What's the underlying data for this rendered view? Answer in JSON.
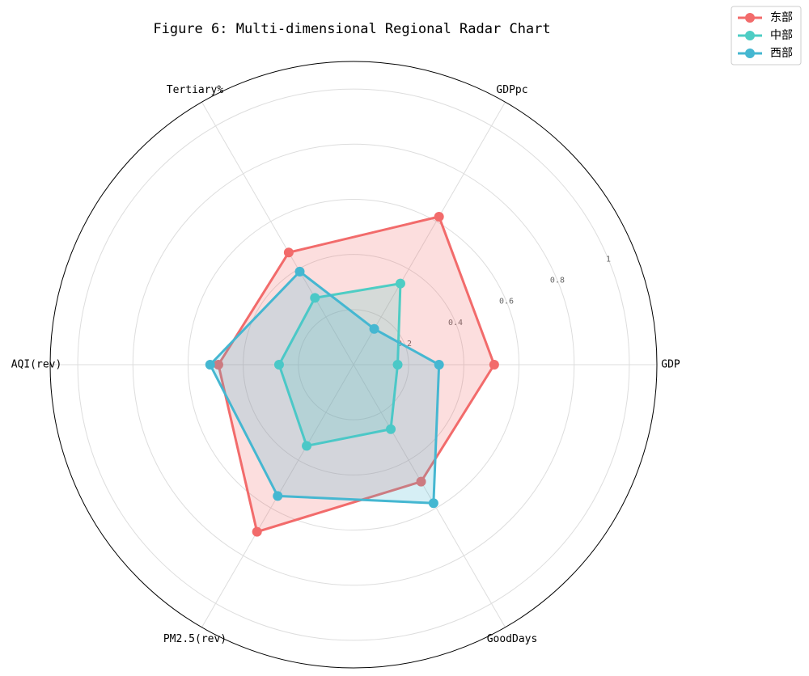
{
  "chart_data": {
    "type": "radar",
    "title": "Figure 6: Multi-dimensional Regional Radar Chart",
    "categories": [
      "GDP",
      "GDPpc",
      "Tertiary%",
      "AQI(rev)",
      "PM2.5(rev)",
      "GoodDays"
    ],
    "series": [
      {
        "name": "东部",
        "color": "#f26b6b",
        "values": [
          0.51,
          0.62,
          0.47,
          0.49,
          0.7,
          0.49
        ]
      },
      {
        "name": "中部",
        "color": "#4ecdc4",
        "values": [
          0.16,
          0.34,
          0.28,
          0.27,
          0.34,
          0.27
        ]
      },
      {
        "name": "西部",
        "color": "#45b7d1",
        "values": [
          0.31,
          0.15,
          0.39,
          0.52,
          0.55,
          0.58
        ]
      }
    ],
    "ylim": [
      0,
      1.1
    ],
    "yticks": [
      0.2,
      0.4,
      0.6,
      0.8,
      1.0
    ],
    "grid": true,
    "legend": "upper right"
  }
}
